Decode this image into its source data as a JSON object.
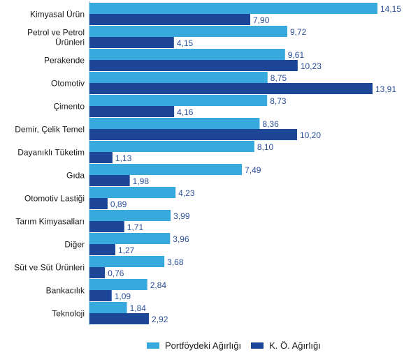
{
  "colors": {
    "portfolio": "#37a9dc",
    "ko": "#1d4698",
    "axis": "#4aa8d8"
  },
  "chart_data": {
    "type": "bar",
    "orientation": "horizontal",
    "categories": [
      "Kimyasal Ürün",
      "Petrol ve Petrol\nÜrünleri",
      "Perakende",
      "Otomotiv",
      "Çimento",
      "Demir, Çelik Temel",
      "Dayanıklı Tüketim",
      "Gıda",
      "Otomotiv Lastiği",
      "Tarım Kimyasalları",
      "Diğer",
      "Süt ve Süt Ürünleri",
      "Bankacılık",
      "Teknoloji"
    ],
    "series": [
      {
        "name": "Portföydeki Ağırlığı",
        "values": [
          14.15,
          9.72,
          9.61,
          8.75,
          8.73,
          8.36,
          8.1,
          7.49,
          4.23,
          3.99,
          3.96,
          3.68,
          2.84,
          1.84
        ],
        "labels": [
          "14,15",
          "9,72",
          "9,61",
          "8,75",
          "8,73",
          "8,36",
          "8,10",
          "7,49",
          "4,23",
          "3,99",
          "3,96",
          "3,68",
          "2,84",
          "1,84"
        ]
      },
      {
        "name": "K. Ö. Ağırlığı",
        "values": [
          7.9,
          4.15,
          10.23,
          13.91,
          4.16,
          10.2,
          1.13,
          1.98,
          0.89,
          1.71,
          1.27,
          0.76,
          1.09,
          2.92
        ],
        "labels": [
          "7,90",
          "4,15",
          "10,23",
          "13,91",
          "4,16",
          "10,20",
          "1,13",
          "1,98",
          "0,89",
          "1,71",
          "1,27",
          "0,76",
          "1,09",
          "2,92"
        ]
      }
    ],
    "xlim": [
      0,
      14.15
    ],
    "grid": false,
    "legend_position": "bottom"
  }
}
